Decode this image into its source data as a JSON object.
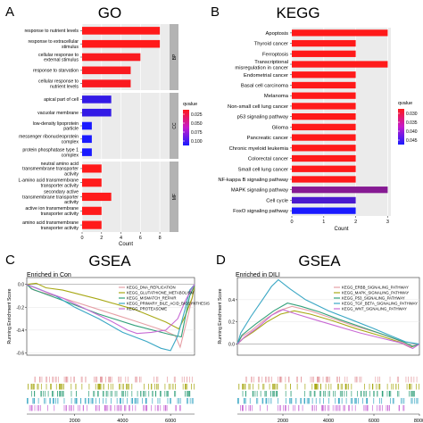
{
  "panels": {
    "A": {
      "letter": "A",
      "title": "GO"
    },
    "B": {
      "letter": "B",
      "title": "KEGG"
    },
    "C": {
      "letter": "C",
      "title": "GSEA",
      "subtitle": "Enriched in Con"
    },
    "D": {
      "letter": "D",
      "title": "GSEA",
      "subtitle": "Enriched in DILI"
    }
  },
  "colors": {
    "low_p": "#ff1a1a",
    "high_p": "#1a1aff",
    "facet_strip": "#b3b3b3",
    "panel_bg": "#ebebeb"
  },
  "chart_data": [
    {
      "id": "A",
      "type": "bar",
      "orientation": "horizontal",
      "title": "GO",
      "xlabel": "Count",
      "ylabel": "",
      "xlim": [
        0,
        9
      ],
      "x_ticks": [
        0,
        2,
        4,
        6,
        8
      ],
      "grid": true,
      "legend_title": "qvalue",
      "legend_ticks": [
        "0.025",
        "0.050",
        "0.075",
        "0.100"
      ],
      "legend_range": [
        0.01,
        0.1
      ],
      "legend_position": "right",
      "facets": [
        {
          "strip": "BP",
          "categories": [
            {
              "label": [
                "response to nutrient levels"
              ],
              "value": 8,
              "qvalue": 0.005
            },
            {
              "label": [
                "response to extracellular",
                "stimulus"
              ],
              "value": 8,
              "qvalue": 0.005
            },
            {
              "label": [
                "cellular response to",
                "external stimulus"
              ],
              "value": 6,
              "qvalue": 0.012
            },
            {
              "label": [
                "response to starvation"
              ],
              "value": 5,
              "qvalue": 0.012
            },
            {
              "label": [
                "cellular response to",
                "nutrient levels"
              ],
              "value": 5,
              "qvalue": 0.012
            }
          ]
        },
        {
          "strip": "CC",
          "categories": [
            {
              "label": [
                "apical part of cell"
              ],
              "value": 3,
              "qvalue": 0.09
            },
            {
              "label": [
                "vacuolar membrane"
              ],
              "value": 3,
              "qvalue": 0.09
            },
            {
              "label": [
                "low-density lipoprotein",
                "particle"
              ],
              "value": 1,
              "qvalue": 0.1
            },
            {
              "label": [
                "messenger ribonucleoprotein",
                "complex"
              ],
              "value": 1,
              "qvalue": 0.1
            },
            {
              "label": [
                "protein phosphatase type 1",
                "complex"
              ],
              "value": 1,
              "qvalue": 0.1
            }
          ]
        },
        {
          "strip": "MF",
          "categories": [
            {
              "label": [
                "neutral amino acid",
                "transmembrane transporter",
                "activity"
              ],
              "value": 2,
              "qvalue": 0.005
            },
            {
              "label": [
                "L-amino acid transmembrane",
                "transporter activity"
              ],
              "value": 2,
              "qvalue": 0.005
            },
            {
              "label": [
                "secondary active",
                "transmembrane transporter",
                "activity"
              ],
              "value": 3,
              "qvalue": 0.005
            },
            {
              "label": [
                "active ion transmembrane",
                "transporter activity"
              ],
              "value": 2,
              "qvalue": 0.005
            },
            {
              "label": [
                "amino acid transmembrane",
                "transporter activity"
              ],
              "value": 2,
              "qvalue": 0.005
            }
          ]
        }
      ]
    },
    {
      "id": "B",
      "type": "bar",
      "orientation": "horizontal",
      "title": "KEGG",
      "xlabel": "Count",
      "ylabel": "",
      "xlim": [
        0,
        3.1
      ],
      "x_ticks": [
        0,
        1,
        2,
        3
      ],
      "grid": true,
      "legend_title": "qvalue",
      "legend_ticks": [
        "0.030",
        "0.035",
        "0.040",
        "0.045"
      ],
      "legend_range": [
        0.028,
        0.047
      ],
      "legend_position": "right",
      "categories": [
        "Apoptosis",
        "Thyroid cancer",
        "Ferroptosis",
        [
          "Transcriptional",
          "misregulation in cancer"
        ],
        "Endometrial cancer",
        "Basal cell carcinoma",
        "Melanoma",
        "Non-small cell lung cancer",
        "p53 signaling pathway",
        "Glioma",
        "Pancreatic cancer",
        "Chronic myeloid leukemia",
        "Colorectal cancer",
        "Small cell lung cancer",
        "NF-kappa B signaling pathway",
        "MAPK signaling pathway",
        "Cell cycle",
        "FoxO signaling pathway"
      ],
      "values": [
        3,
        2,
        2,
        3,
        2,
        2,
        2,
        2,
        2,
        2,
        2,
        2,
        2,
        2,
        2,
        3,
        2,
        2
      ],
      "qvalues": [
        0.028,
        0.028,
        0.028,
        0.028,
        0.028,
        0.028,
        0.028,
        0.028,
        0.028,
        0.028,
        0.028,
        0.028,
        0.028,
        0.028,
        0.028,
        0.038,
        0.043,
        0.047
      ]
    },
    {
      "id": "C",
      "type": "line",
      "title": "GSEA",
      "subtitle": "Enriched in Con",
      "ylabel": "Running Enrichment Score",
      "xlabel": "",
      "xlim": [
        0,
        7000
      ],
      "ylim": [
        -0.62,
        0.06
      ],
      "x_ticks": [
        2000,
        4000,
        6000
      ],
      "y_ticks": [
        0.0,
        -0.2,
        -0.4,
        -0.6
      ],
      "y_tick_labels": [
        "0.0",
        "-0.2",
        "-0.4",
        "-0.6"
      ],
      "legend_position": "top-center",
      "series": [
        {
          "name": "KEGG_DNA_REPLICATION",
          "color": "#e6a0a6",
          "x": [
            0,
            300,
            1500,
            3000,
            4500,
            5800,
            6200,
            6400,
            6700,
            6900,
            7000
          ],
          "y": [
            0.0,
            -0.05,
            -0.12,
            -0.22,
            -0.32,
            -0.41,
            -0.45,
            -0.55,
            -0.3,
            -0.12,
            -0.01
          ]
        },
        {
          "name": "KEGG_GLUTATHIONE_METABOLISM",
          "color": "#a8a815",
          "x": [
            0,
            400,
            800,
            1500,
            3000,
            4500,
            5800,
            6350,
            6600,
            6900,
            7000
          ],
          "y": [
            0.0,
            0.01,
            -0.03,
            -0.05,
            -0.13,
            -0.22,
            -0.33,
            -0.39,
            -0.28,
            -0.12,
            -0.01
          ]
        },
        {
          "name": "KEGG_MISMATCH_REPAIR",
          "color": "#33a07a",
          "x": [
            0,
            200,
            1500,
            3000,
            4500,
            6000,
            6450,
            6600,
            6800,
            7000
          ],
          "y": [
            0.0,
            -0.04,
            -0.14,
            -0.26,
            -0.36,
            -0.44,
            -0.46,
            -0.3,
            -0.1,
            -0.01
          ]
        },
        {
          "name": "KEGG_PRIMARY_BILE_ACID_BIOSYNTHESIS",
          "color": "#3aa7c4",
          "x": [
            0,
            500,
            1200,
            2000,
            3000,
            4000,
            5000,
            5600,
            6000,
            6300,
            6600,
            6800,
            7000
          ],
          "y": [
            0.0,
            -0.04,
            -0.1,
            -0.2,
            -0.3,
            -0.42,
            -0.5,
            -0.56,
            -0.58,
            -0.45,
            -0.22,
            -0.05,
            0.0
          ]
        },
        {
          "name": "KEGG_PROTEASOME",
          "color": "#c86ad4",
          "x": [
            0,
            600,
            1500,
            2500,
            3500,
            4200,
            4600,
            5200,
            5800,
            6300,
            6600,
            6850,
            7000
          ],
          "y": [
            0.0,
            -0.05,
            -0.12,
            -0.22,
            -0.32,
            -0.4,
            -0.43,
            -0.42,
            -0.4,
            -0.3,
            -0.15,
            -0.05,
            0.0
          ]
        }
      ],
      "rug_colors": [
        "#e6a0a6",
        "#a8a815",
        "#33a07a",
        "#3aa7c4",
        "#c86ad4"
      ]
    },
    {
      "id": "D",
      "type": "line",
      "title": "GSEA",
      "subtitle": "Enriched in DILI",
      "ylabel": "Running Enrichment Score",
      "xlabel": "",
      "xlim": [
        0,
        8000
      ],
      "ylim": [
        -0.1,
        0.6
      ],
      "x_ticks": [
        2000,
        4000,
        6000,
        8000
      ],
      "y_ticks": [
        0.0,
        0.2,
        0.4
      ],
      "y_tick_labels": [
        "0.0",
        "0.2",
        "0.4"
      ],
      "legend_position": "top-right",
      "series": [
        {
          "name": "KEGG_ERBB_SIGNALING_PATHWAY",
          "color": "#e6a0a6",
          "x": [
            0,
            200,
            600,
            1200,
            1800,
            2400,
            3200,
            4200,
            5200,
            6200,
            7000,
            7600,
            8000
          ],
          "y": [
            0.0,
            0.07,
            0.12,
            0.22,
            0.3,
            0.34,
            0.3,
            0.23,
            0.16,
            0.1,
            0.04,
            -0.02,
            0.0
          ]
        },
        {
          "name": "KEGG_MAPK_SIGNALING_PATHWAY",
          "color": "#a8a815",
          "x": [
            0,
            250,
            700,
            1300,
            1900,
            2500,
            3200,
            4200,
            5200,
            6200,
            7100,
            7600,
            8000
          ],
          "y": [
            0.0,
            0.05,
            0.11,
            0.2,
            0.27,
            0.3,
            0.27,
            0.21,
            0.14,
            0.08,
            0.02,
            -0.03,
            0.0
          ]
        },
        {
          "name": "KEGG_P53_SIGNALING_PATHWAY",
          "color": "#33a07a",
          "x": [
            0,
            200,
            800,
            1600,
            2200,
            2800,
            3600,
            4500,
            5500,
            6500,
            7300,
            7700,
            8000
          ],
          "y": [
            0.0,
            0.08,
            0.18,
            0.3,
            0.37,
            0.34,
            0.29,
            0.22,
            0.15,
            0.08,
            0.02,
            -0.02,
            0.0
          ]
        },
        {
          "name": "KEGG_TGF_BETA_SIGNALING_PATHWAY",
          "color": "#3aa7c4",
          "x": [
            0,
            150,
            600,
            1100,
            1500,
            1800,
            2300,
            3000,
            4000,
            5000,
            6000,
            6800,
            7400,
            8000
          ],
          "y": [
            0.0,
            0.1,
            0.25,
            0.4,
            0.52,
            0.58,
            0.5,
            0.4,
            0.3,
            0.22,
            0.14,
            0.07,
            0.02,
            0.0
          ]
        },
        {
          "name": "KEGG_WNT_SIGNALING_PATHWAY",
          "color": "#c86ad4",
          "x": [
            0,
            300,
            900,
            1500,
            2000,
            2600,
            3400,
            4400,
            5400,
            6400,
            7200,
            7700,
            8000
          ],
          "y": [
            0.0,
            0.06,
            0.15,
            0.26,
            0.31,
            0.27,
            0.22,
            0.16,
            0.1,
            0.05,
            0.01,
            -0.04,
            0.0
          ]
        }
      ],
      "rug_colors": [
        "#e6a0a6",
        "#a8a815",
        "#33a07a",
        "#3aa7c4",
        "#c86ad4"
      ]
    }
  ]
}
